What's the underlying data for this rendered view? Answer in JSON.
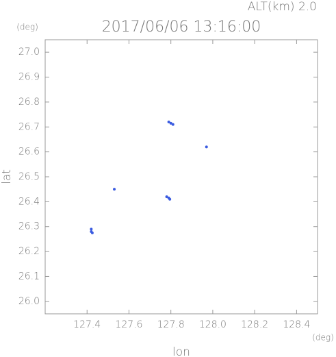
{
  "chart_data": {
    "type": "scatter",
    "title": "2017/06/06 13:16:00",
    "annotation": "ALT(km) 2.0",
    "y_unit": "(deg)",
    "x_unit": "(deg)",
    "x_label": "lon",
    "y_label": "lat",
    "color": "#3a5be0",
    "x": [
      127.42,
      127.42,
      127.425,
      127.53,
      127.78,
      127.79,
      127.795,
      127.79,
      127.8,
      127.81,
      127.97
    ],
    "values": [
      26.28,
      26.29,
      26.275,
      26.45,
      26.42,
      26.415,
      26.41,
      26.72,
      26.715,
      26.71,
      26.62
    ],
    "xlim": [
      127.2,
      128.5
    ],
    "ylim": [
      25.95,
      27.05
    ],
    "xticks": [
      127.4,
      127.6,
      127.8,
      {
        "value": 128,
        "label": "128.0"
      },
      128.2,
      128.4
    ],
    "yticks": [
      {
        "value": 26,
        "label": "26.0"
      },
      26.1,
      26.2,
      26.3,
      26.4,
      26.5,
      26.6,
      26.7,
      26.8,
      26.9,
      {
        "value": 27,
        "label": "27.0"
      }
    ]
  }
}
